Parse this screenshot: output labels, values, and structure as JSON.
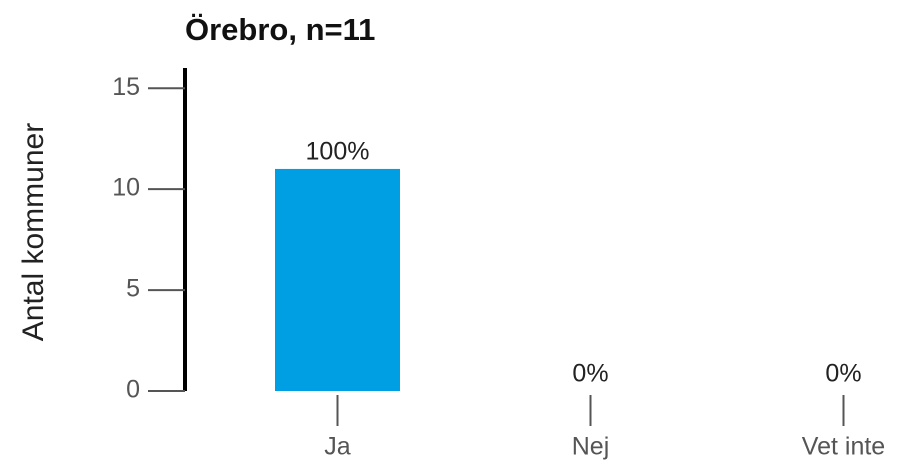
{
  "chart_data": {
    "type": "bar",
    "title": "Örebro, n=11",
    "y_label": "Antal kommuner",
    "categories": [
      "Ja",
      "Nej",
      "Vet inte"
    ],
    "values": [
      11,
      0,
      0
    ],
    "value_labels": [
      "100%",
      "0%",
      "0%"
    ],
    "color": "#009fe3",
    "ylim": [
      0,
      16
    ],
    "yticks": [
      0,
      5,
      10,
      15
    ],
    "grid": false
  }
}
